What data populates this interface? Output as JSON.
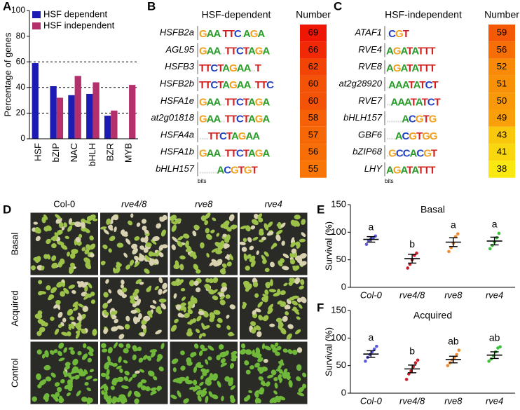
{
  "panel_labels": [
    "A",
    "B",
    "C",
    "D",
    "E",
    "F"
  ],
  "chart_data": [
    {
      "type": "bar",
      "ylabel": "Percentage of genes",
      "categories": [
        "HSF",
        "bZIP",
        "NAC",
        "bHLH",
        "BZR",
        "MYB"
      ],
      "series": [
        {
          "name": "HSF dependent",
          "color": "#1c1cb4",
          "values": [
            59,
            41,
            34,
            35,
            18,
            null
          ]
        },
        {
          "name": "HSF independent",
          "color": "#b3306c",
          "values": [
            null,
            32,
            49,
            44,
            22,
            42
          ]
        }
      ],
      "ylim": [
        0,
        100
      ],
      "yticks": [
        0,
        20,
        40,
        60,
        80,
        100
      ],
      "reference_lines": [
        20,
        40,
        60
      ],
      "legend": "upper right"
    },
    {
      "type": "dot",
      "title": "Basal",
      "ylabel": "Survival (%)",
      "categories": [
        "Col-0",
        "rve4/8",
        "rve8",
        "rve4"
      ],
      "colors": [
        "#5a5ad8",
        "#c8202a",
        "#f08a30",
        "#3cc03c"
      ],
      "means": [
        87,
        52,
        82,
        84
      ],
      "sem": [
        5,
        8,
        8,
        7
      ],
      "points": [
        [
          78,
          85,
          88,
          90,
          93
        ],
        [
          35,
          42,
          50,
          58,
          62
        ],
        [
          65,
          72,
          80,
          92,
          97
        ],
        [
          70,
          76,
          82,
          90,
          98
        ]
      ],
      "letters": [
        "a",
        "b",
        "a",
        "a"
      ],
      "ylim": [
        0,
        150
      ],
      "yticks": [
        0,
        50,
        100,
        150
      ]
    },
    {
      "type": "dot",
      "title": "Acquired",
      "ylabel": "Survival (%)",
      "categories": [
        "Col-0",
        "rve4/8",
        "rve8",
        "rve4"
      ],
      "colors": [
        "#5a5ad8",
        "#c8202a",
        "#f08a30",
        "#3cc03c"
      ],
      "means": [
        71,
        44,
        61,
        69
      ],
      "sem": [
        6,
        7,
        6,
        6
      ],
      "points": [
        [
          58,
          65,
          70,
          75,
          80,
          85
        ],
        [
          25,
          35,
          40,
          48,
          55,
          60
        ],
        [
          50,
          55,
          60,
          65,
          70,
          78
        ],
        [
          58,
          62,
          68,
          75,
          82,
          84
        ]
      ],
      "letters": [
        "a",
        "b",
        "ab",
        "ab"
      ],
      "ylim": [
        0,
        150
      ],
      "yticks": [
        0,
        50,
        100,
        150
      ]
    }
  ],
  "motif_tables": [
    {
      "title": "HSF-dependent",
      "number_header": "Number",
      "axis_label": "bits",
      "rows": [
        {
          "gene": "HSFB2a",
          "motif": "GAA.TTC.AGA",
          "number": 69
        },
        {
          "gene": "AGL95",
          "motif": "GAA..TTCTAGA",
          "number": 66
        },
        {
          "gene": "HSFB3",
          "motif": "TTCTAGAA..T",
          "number": 62
        },
        {
          "gene": "HSFB2b",
          "motif": "TTCTAGAA..TTC",
          "number": 60
        },
        {
          "gene": "HSFA1e",
          "motif": "GAA..TTCTAGA",
          "number": 60
        },
        {
          "gene": "at2g01818",
          "motif": "GAA..TTCTAGA",
          "number": 58
        },
        {
          "gene": "HSFA4a",
          "motif": "....TTCTAGAA",
          "number": 57
        },
        {
          "gene": "HSFA1b",
          "motif": "GAA..TTCTAGA",
          "number": 56
        },
        {
          "gene": "bHLH157",
          "motif": "........ACGTGT",
          "number": 55
        }
      ]
    },
    {
      "title": "HSF-independent",
      "number_header": "Number",
      "axis_label": "bits",
      "rows": [
        {
          "gene": "ATAF1",
          "motif": ".CGT",
          "number": 59
        },
        {
          "gene": "RVE4",
          "motif": "AGATATTT",
          "number": 56
        },
        {
          "gene": "RVE8",
          "motif": "AGATATTT",
          "number": 52
        },
        {
          "gene": "at2g28920",
          "motif": ".AAATATCT",
          "number": 51
        },
        {
          "gene": "RVE7",
          "motif": "..AAATATCT",
          "number": 50
        },
        {
          "gene": "bHLH157",
          "motif": ".......ACGTG",
          "number": 49
        },
        {
          "gene": "GBF6",
          "motif": "....ACGTGG",
          "number": 43
        },
        {
          "gene": "bZIP68",
          "motif": ".GCCACGT",
          "number": 41
        },
        {
          "gene": "LHY",
          "motif": "AGATATTT",
          "number": 38
        }
      ]
    }
  ],
  "photo_grid": {
    "columns": [
      "Col-0",
      "rve4/8",
      "rve8",
      "rve4"
    ],
    "rows": [
      "Basal",
      "Acquired",
      "Control"
    ]
  }
}
